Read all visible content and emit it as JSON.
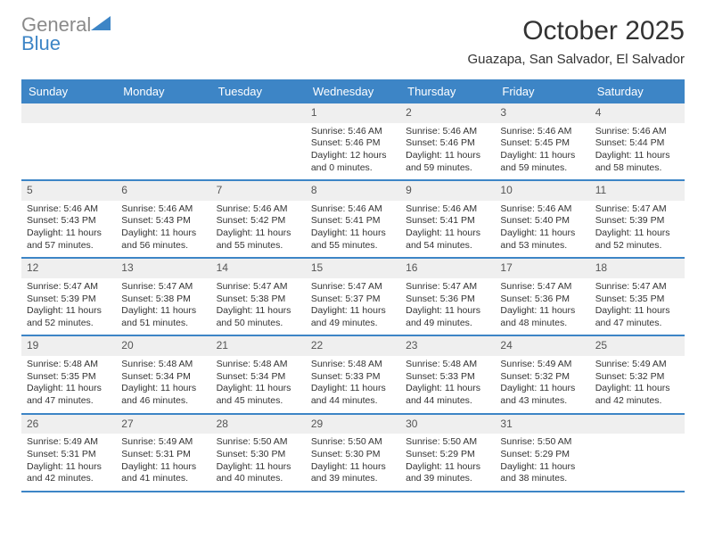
{
  "logo": {
    "line1a": "General",
    "line1b_tri_color": "#3d85c6",
    "line2": "Blue"
  },
  "title": "October 2025",
  "subtitle": "Guazapa, San Salvador, El Salvador",
  "colors": {
    "header_bg": "#3d85c6",
    "header_text": "#ffffff",
    "daynum_bg": "#efefef",
    "divider": "#3d85c6",
    "body_text": "#333333"
  },
  "typography": {
    "title_fontsize": 30,
    "subtitle_fontsize": 15,
    "dayhead_fontsize": 13,
    "cell_fontsize": 10.5
  },
  "dayHeaders": [
    "Sunday",
    "Monday",
    "Tuesday",
    "Wednesday",
    "Thursday",
    "Friday",
    "Saturday"
  ],
  "weeks": [
    [
      {
        "n": "",
        "sr": "",
        "ss": "",
        "dl": ""
      },
      {
        "n": "",
        "sr": "",
        "ss": "",
        "dl": ""
      },
      {
        "n": "",
        "sr": "",
        "ss": "",
        "dl": ""
      },
      {
        "n": "1",
        "sr": "Sunrise: 5:46 AM",
        "ss": "Sunset: 5:46 PM",
        "dl": "Daylight: 12 hours and 0 minutes."
      },
      {
        "n": "2",
        "sr": "Sunrise: 5:46 AM",
        "ss": "Sunset: 5:46 PM",
        "dl": "Daylight: 11 hours and 59 minutes."
      },
      {
        "n": "3",
        "sr": "Sunrise: 5:46 AM",
        "ss": "Sunset: 5:45 PM",
        "dl": "Daylight: 11 hours and 59 minutes."
      },
      {
        "n": "4",
        "sr": "Sunrise: 5:46 AM",
        "ss": "Sunset: 5:44 PM",
        "dl": "Daylight: 11 hours and 58 minutes."
      }
    ],
    [
      {
        "n": "5",
        "sr": "Sunrise: 5:46 AM",
        "ss": "Sunset: 5:43 PM",
        "dl": "Daylight: 11 hours and 57 minutes."
      },
      {
        "n": "6",
        "sr": "Sunrise: 5:46 AM",
        "ss": "Sunset: 5:43 PM",
        "dl": "Daylight: 11 hours and 56 minutes."
      },
      {
        "n": "7",
        "sr": "Sunrise: 5:46 AM",
        "ss": "Sunset: 5:42 PM",
        "dl": "Daylight: 11 hours and 55 minutes."
      },
      {
        "n": "8",
        "sr": "Sunrise: 5:46 AM",
        "ss": "Sunset: 5:41 PM",
        "dl": "Daylight: 11 hours and 55 minutes."
      },
      {
        "n": "9",
        "sr": "Sunrise: 5:46 AM",
        "ss": "Sunset: 5:41 PM",
        "dl": "Daylight: 11 hours and 54 minutes."
      },
      {
        "n": "10",
        "sr": "Sunrise: 5:46 AM",
        "ss": "Sunset: 5:40 PM",
        "dl": "Daylight: 11 hours and 53 minutes."
      },
      {
        "n": "11",
        "sr": "Sunrise: 5:47 AM",
        "ss": "Sunset: 5:39 PM",
        "dl": "Daylight: 11 hours and 52 minutes."
      }
    ],
    [
      {
        "n": "12",
        "sr": "Sunrise: 5:47 AM",
        "ss": "Sunset: 5:39 PM",
        "dl": "Daylight: 11 hours and 52 minutes."
      },
      {
        "n": "13",
        "sr": "Sunrise: 5:47 AM",
        "ss": "Sunset: 5:38 PM",
        "dl": "Daylight: 11 hours and 51 minutes."
      },
      {
        "n": "14",
        "sr": "Sunrise: 5:47 AM",
        "ss": "Sunset: 5:38 PM",
        "dl": "Daylight: 11 hours and 50 minutes."
      },
      {
        "n": "15",
        "sr": "Sunrise: 5:47 AM",
        "ss": "Sunset: 5:37 PM",
        "dl": "Daylight: 11 hours and 49 minutes."
      },
      {
        "n": "16",
        "sr": "Sunrise: 5:47 AM",
        "ss": "Sunset: 5:36 PM",
        "dl": "Daylight: 11 hours and 49 minutes."
      },
      {
        "n": "17",
        "sr": "Sunrise: 5:47 AM",
        "ss": "Sunset: 5:36 PM",
        "dl": "Daylight: 11 hours and 48 minutes."
      },
      {
        "n": "18",
        "sr": "Sunrise: 5:47 AM",
        "ss": "Sunset: 5:35 PM",
        "dl": "Daylight: 11 hours and 47 minutes."
      }
    ],
    [
      {
        "n": "19",
        "sr": "Sunrise: 5:48 AM",
        "ss": "Sunset: 5:35 PM",
        "dl": "Daylight: 11 hours and 47 minutes."
      },
      {
        "n": "20",
        "sr": "Sunrise: 5:48 AM",
        "ss": "Sunset: 5:34 PM",
        "dl": "Daylight: 11 hours and 46 minutes."
      },
      {
        "n": "21",
        "sr": "Sunrise: 5:48 AM",
        "ss": "Sunset: 5:34 PM",
        "dl": "Daylight: 11 hours and 45 minutes."
      },
      {
        "n": "22",
        "sr": "Sunrise: 5:48 AM",
        "ss": "Sunset: 5:33 PM",
        "dl": "Daylight: 11 hours and 44 minutes."
      },
      {
        "n": "23",
        "sr": "Sunrise: 5:48 AM",
        "ss": "Sunset: 5:33 PM",
        "dl": "Daylight: 11 hours and 44 minutes."
      },
      {
        "n": "24",
        "sr": "Sunrise: 5:49 AM",
        "ss": "Sunset: 5:32 PM",
        "dl": "Daylight: 11 hours and 43 minutes."
      },
      {
        "n": "25",
        "sr": "Sunrise: 5:49 AM",
        "ss": "Sunset: 5:32 PM",
        "dl": "Daylight: 11 hours and 42 minutes."
      }
    ],
    [
      {
        "n": "26",
        "sr": "Sunrise: 5:49 AM",
        "ss": "Sunset: 5:31 PM",
        "dl": "Daylight: 11 hours and 42 minutes."
      },
      {
        "n": "27",
        "sr": "Sunrise: 5:49 AM",
        "ss": "Sunset: 5:31 PM",
        "dl": "Daylight: 11 hours and 41 minutes."
      },
      {
        "n": "28",
        "sr": "Sunrise: 5:50 AM",
        "ss": "Sunset: 5:30 PM",
        "dl": "Daylight: 11 hours and 40 minutes."
      },
      {
        "n": "29",
        "sr": "Sunrise: 5:50 AM",
        "ss": "Sunset: 5:30 PM",
        "dl": "Daylight: 11 hours and 39 minutes."
      },
      {
        "n": "30",
        "sr": "Sunrise: 5:50 AM",
        "ss": "Sunset: 5:29 PM",
        "dl": "Daylight: 11 hours and 39 minutes."
      },
      {
        "n": "31",
        "sr": "Sunrise: 5:50 AM",
        "ss": "Sunset: 5:29 PM",
        "dl": "Daylight: 11 hours and 38 minutes."
      },
      {
        "n": "",
        "sr": "",
        "ss": "",
        "dl": ""
      }
    ]
  ]
}
